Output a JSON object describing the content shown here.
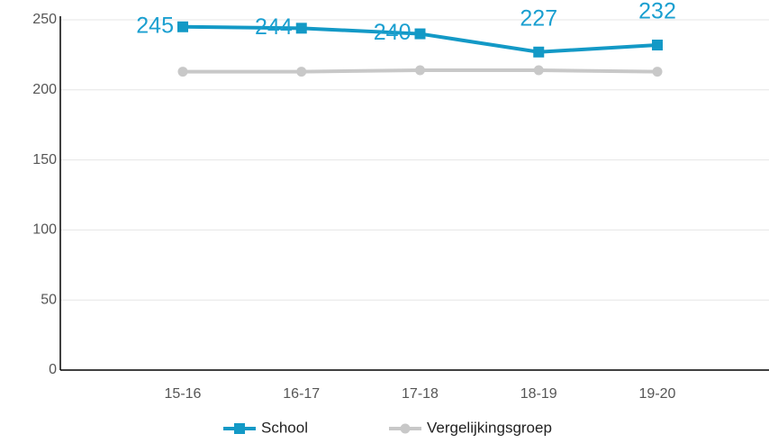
{
  "chart_data": {
    "type": "line",
    "categories": [
      "15-16",
      "16-17",
      "17-18",
      "18-19",
      "19-20"
    ],
    "series": [
      {
        "name": "School",
        "color": "#1399c6",
        "marker": "square",
        "values": [
          245,
          244,
          240,
          227,
          232
        ],
        "show_labels": true
      },
      {
        "name": "Vergelijkingsgroep",
        "color": "#c8c8c8",
        "marker": "circle",
        "values": [
          213,
          213,
          214,
          214,
          213
        ],
        "show_labels": false
      }
    ],
    "ylim": [
      0,
      250
    ],
    "yticks": [
      0,
      50,
      100,
      150,
      200,
      250
    ],
    "grid": true,
    "legend": "bottom"
  }
}
